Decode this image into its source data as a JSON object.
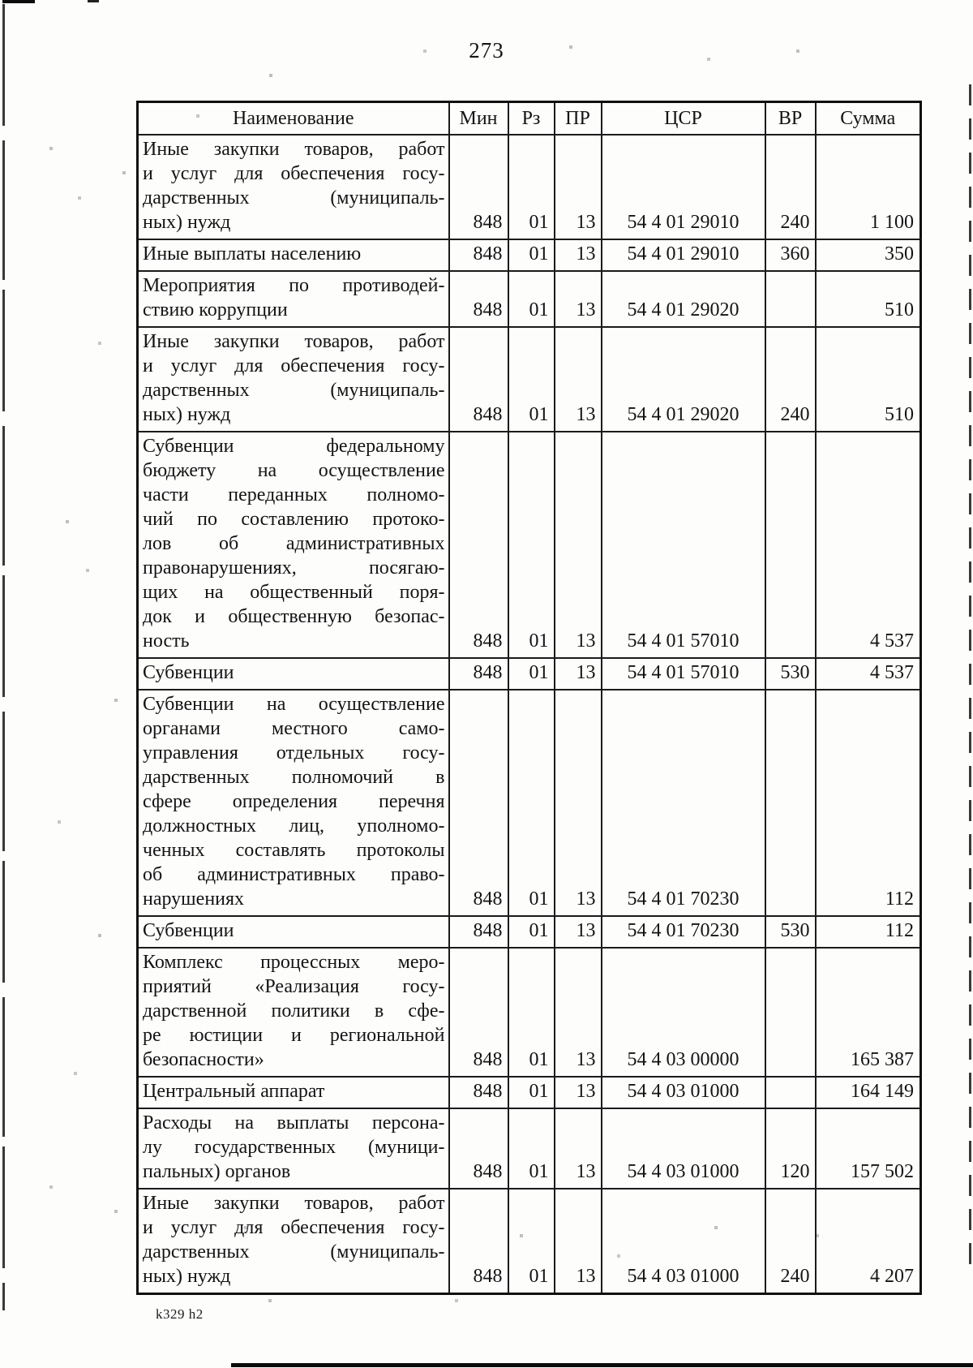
{
  "page": {
    "number": "273",
    "footer_mark": "k329 h2"
  },
  "table": {
    "columns": [
      "Наименование",
      "Мин",
      "Рз",
      "ПР",
      "ЦСР",
      "ВР",
      "Сумма"
    ],
    "rows": [
      {
        "name_lines": [
          "Иные закупки товаров, работ",
          "и услуг для обеспечения госу-",
          "дарственных (муниципаль-",
          "ных) нужд"
        ],
        "min": "848",
        "rz": "01",
        "pr": "13",
        "csr": "54 4 01 29010",
        "vr": "240",
        "sum": "1 100"
      },
      {
        "name_lines": [
          "Иные выплаты населению"
        ],
        "min": "848",
        "rz": "01",
        "pr": "13",
        "csr": "54 4 01 29010",
        "vr": "360",
        "sum": "350"
      },
      {
        "name_lines": [
          "Мероприятия по противодей-",
          "ствию коррупции"
        ],
        "min": "848",
        "rz": "01",
        "pr": "13",
        "csr": "54 4 01 29020",
        "vr": "",
        "sum": "510"
      },
      {
        "name_lines": [
          "Иные закупки товаров, работ",
          "и услуг для обеспечения госу-",
          "дарственных (муниципаль-",
          "ных) нужд"
        ],
        "min": "848",
        "rz": "01",
        "pr": "13",
        "csr": "54 4 01 29020",
        "vr": "240",
        "sum": "510"
      },
      {
        "name_lines": [
          "Субвенции федеральному",
          "бюджету на осуществление",
          "части переданных полномо-",
          "чий по составлению протоко-",
          "лов об административных",
          "правонарушениях, посягаю-",
          "щих на общественный поря-",
          "док и общественную безопас-",
          "ность"
        ],
        "min": "848",
        "rz": "01",
        "pr": "13",
        "csr": "54 4 01 57010",
        "vr": "",
        "sum": "4 537"
      },
      {
        "name_lines": [
          "Субвенции"
        ],
        "min": "848",
        "rz": "01",
        "pr": "13",
        "csr": "54 4 01 57010",
        "vr": "530",
        "sum": "4 537"
      },
      {
        "name_lines": [
          "Субвенции на осуществление",
          "органами местного само-",
          "управления отдельных госу-",
          "дарственных полномочий в",
          "сфере определения перечня",
          "должностных лиц, уполномо-",
          "ченных составлять протоколы",
          "об административных право-",
          "нарушениях"
        ],
        "min": "848",
        "rz": "01",
        "pr": "13",
        "csr": "54 4 01 70230",
        "vr": "",
        "sum": "112"
      },
      {
        "name_lines": [
          "Субвенции"
        ],
        "min": "848",
        "rz": "01",
        "pr": "13",
        "csr": "54 4 01 70230",
        "vr": "530",
        "sum": "112"
      },
      {
        "name_lines": [
          "Комплекс процессных меро-",
          "приятий «Реализация госу-",
          "дарственной политики в сфе-",
          "ре юстиции и региональной",
          "безопасности»"
        ],
        "min": "848",
        "rz": "01",
        "pr": "13",
        "csr": "54 4 03 00000",
        "vr": "",
        "sum": "165 387"
      },
      {
        "name_lines": [
          "Центральный аппарат"
        ],
        "min": "848",
        "rz": "01",
        "pr": "13",
        "csr": "54 4 03 01000",
        "vr": "",
        "sum": "164 149"
      },
      {
        "name_lines": [
          "Расходы на выплаты персона-",
          "лу государственных (муници-",
          "пальных) органов"
        ],
        "min": "848",
        "rz": "01",
        "pr": "13",
        "csr": "54 4 03 01000",
        "vr": "120",
        "sum": "157 502"
      },
      {
        "name_lines": [
          "Иные закупки товаров, работ",
          "и услуг для обеспечения госу-",
          "дарственных (муниципаль-",
          "ных) нужд"
        ],
        "min": "848",
        "rz": "01",
        "pr": "13",
        "csr": "54 4 03 01000",
        "vr": "240",
        "sum": "4 207"
      }
    ]
  }
}
